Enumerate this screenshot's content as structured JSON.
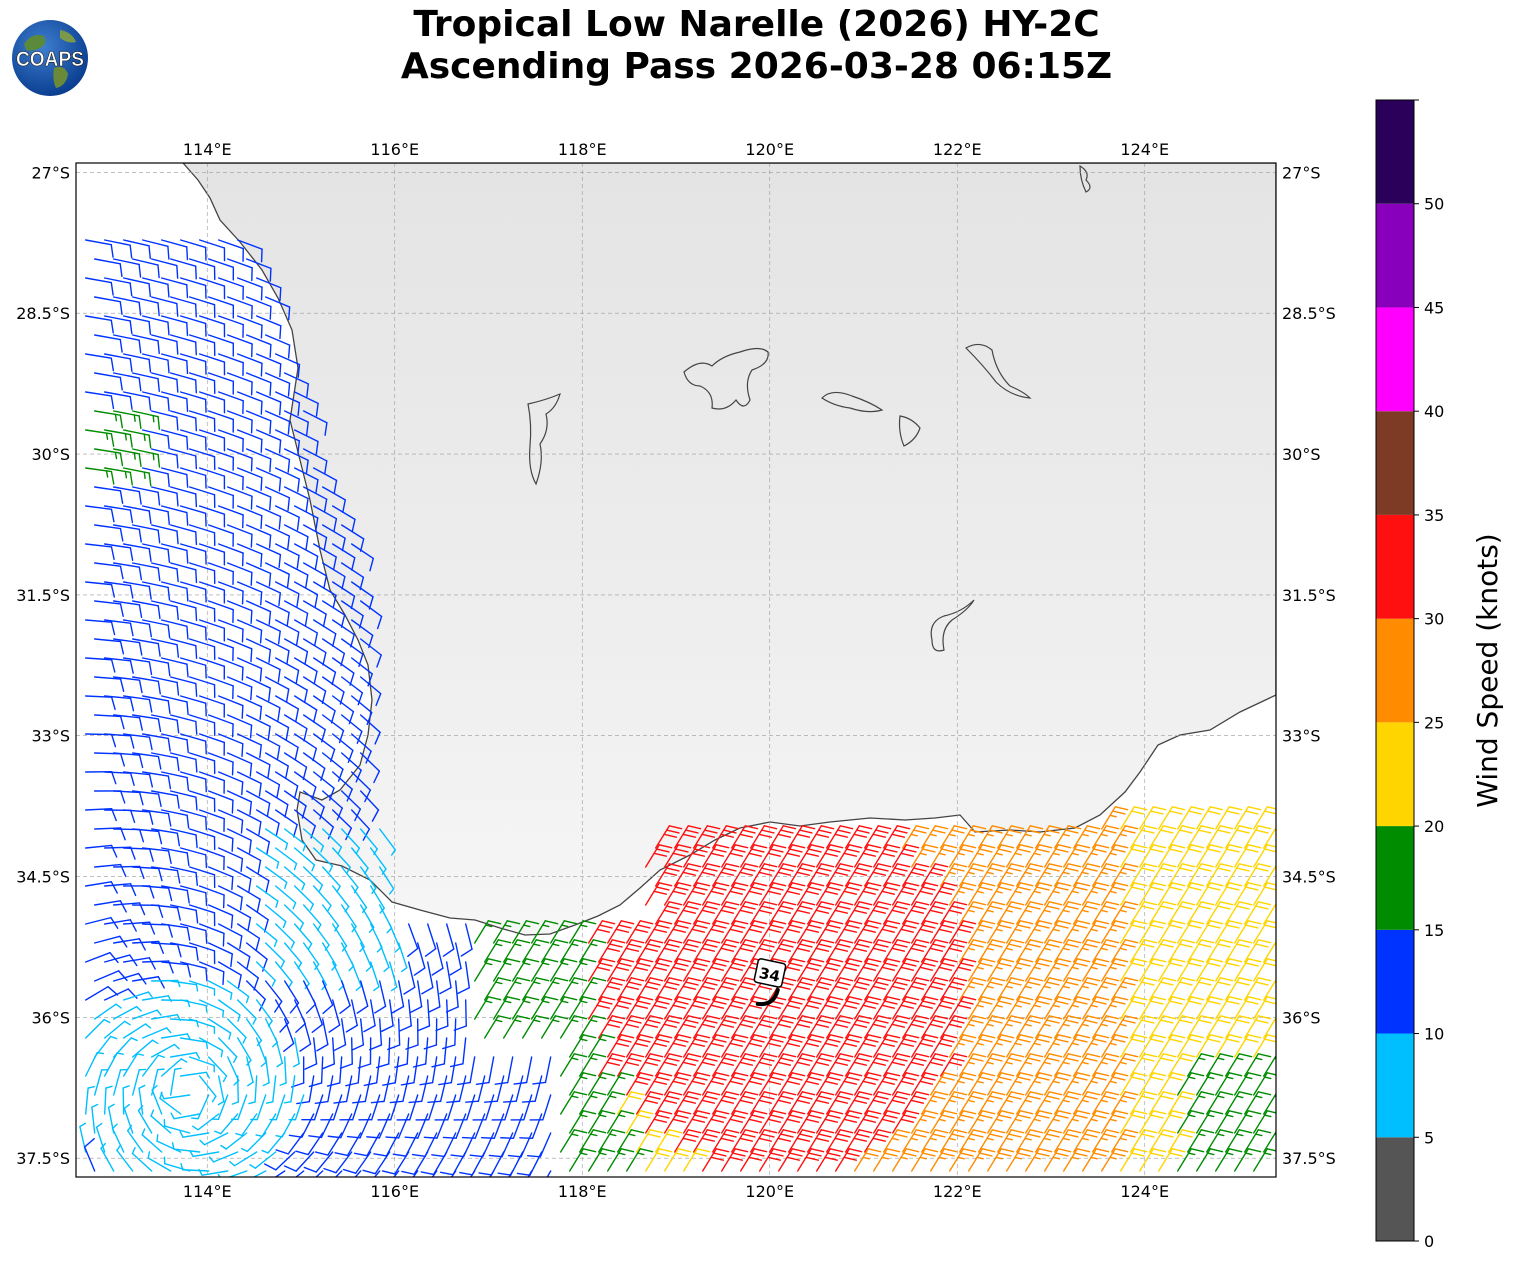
{
  "header": {
    "title_line1": "Tropical Low Narelle (2026) HY-2C",
    "title_line2": "Ascending Pass 2026-03-28 06:15Z"
  },
  "logo": {
    "text": "COAPS",
    "icon": "globe-logo-icon"
  },
  "map": {
    "lon_range": [
      112.6,
      125.4
    ],
    "lat_range": [
      -37.7,
      -26.9
    ],
    "lon_ticks": [
      {
        "value": 114,
        "label": "114°E"
      },
      {
        "value": 116,
        "label": "116°E"
      },
      {
        "value": 118,
        "label": "118°E"
      },
      {
        "value": 120,
        "label": "120°E"
      },
      {
        "value": 122,
        "label": "122°E"
      },
      {
        "value": 124,
        "label": "124°E"
      }
    ],
    "lat_ticks": [
      {
        "value": -27,
        "label": "27°S"
      },
      {
        "value": -28.5,
        "label": "28.5°S"
      },
      {
        "value": -30,
        "label": "30°S"
      },
      {
        "value": -31.5,
        "label": "31.5°S"
      },
      {
        "value": -33,
        "label": "33°S"
      },
      {
        "value": -34.5,
        "label": "34.5°S"
      },
      {
        "value": -36,
        "label": "36°S"
      },
      {
        "value": -37.5,
        "label": "37.5°S"
      }
    ],
    "gridlines": true,
    "storm_marker": {
      "label": "34",
      "lon": 120.0,
      "lat": -35.75
    },
    "low_center": {
      "lon": 113.8,
      "lat": -36.8
    }
  },
  "colorbar": {
    "title": "Wind Speed (knots)",
    "bins": [
      {
        "min": 0,
        "max": 5,
        "color": "#555555"
      },
      {
        "min": 5,
        "max": 10,
        "color": "#00bfff"
      },
      {
        "min": 10,
        "max": 15,
        "color": "#0033ff"
      },
      {
        "min": 15,
        "max": 20,
        "color": "#008c00"
      },
      {
        "min": 20,
        "max": 25,
        "color": "#ffd500"
      },
      {
        "min": 25,
        "max": 30,
        "color": "#ff8c00"
      },
      {
        "min": 30,
        "max": 35,
        "color": "#ff1010"
      },
      {
        "min": 35,
        "max": 40,
        "color": "#7d3b26"
      },
      {
        "min": 40,
        "max": 45,
        "color": "#ff00ff"
      },
      {
        "min": 45,
        "max": 50,
        "color": "#8800bb"
      },
      {
        "min": 50,
        "max": 55,
        "color": "#2b005a"
      }
    ],
    "tick_labels": [
      "0",
      "5",
      "10",
      "15",
      "20",
      "25",
      "30",
      "35",
      "40",
      "45",
      "50"
    ]
  }
}
